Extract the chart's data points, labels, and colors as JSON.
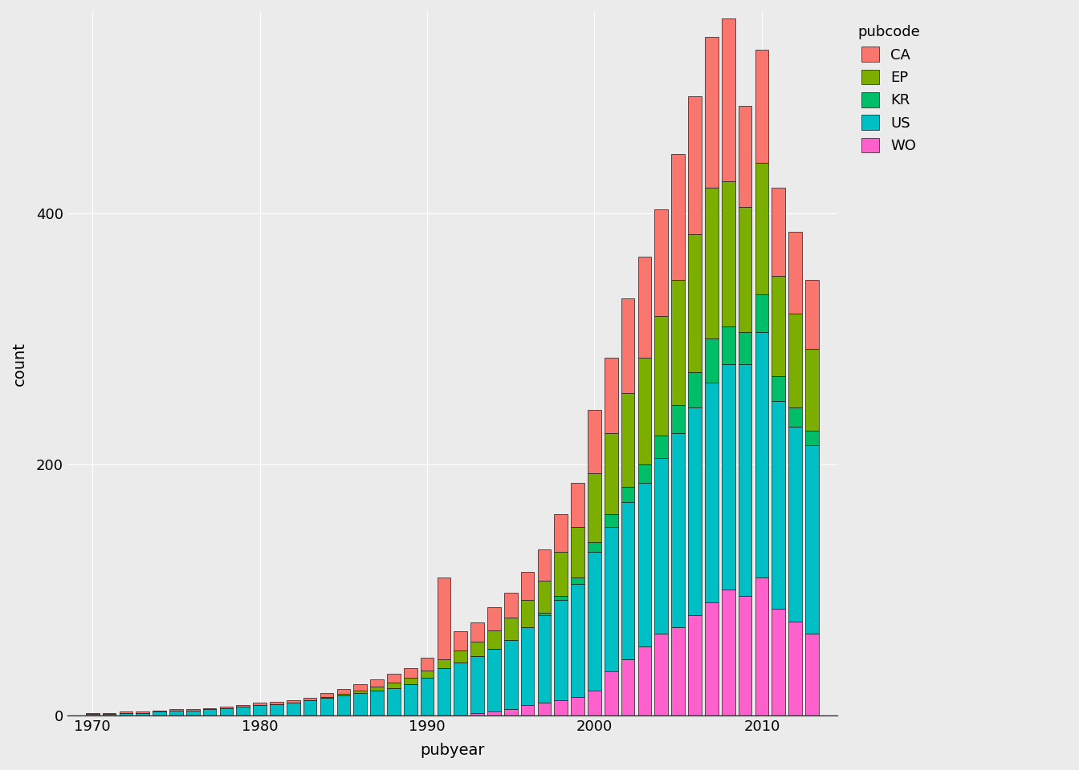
{
  "title": "",
  "xlabel": "pubyear",
  "ylabel": "count",
  "legend_title": "pubcode",
  "background_color": "#EBEBEB",
  "grid_color": "#FFFFFF",
  "bar_edge_color": "#1A1A1A",
  "bar_edge_width": 0.5,
  "categories": [
    "WO",
    "US",
    "KR",
    "EP",
    "CA"
  ],
  "colors": {
    "CA": "#F8766D",
    "EP": "#7CAE00",
    "KR": "#00BE67",
    "US": "#00BFC4",
    "WO": "#FF61CC"
  },
  "years": [
    1970,
    1971,
    1972,
    1973,
    1974,
    1975,
    1976,
    1977,
    1978,
    1979,
    1980,
    1981,
    1982,
    1983,
    1984,
    1985,
    1986,
    1987,
    1988,
    1989,
    1990,
    1991,
    1992,
    1993,
    1994,
    1995,
    1996,
    1997,
    1998,
    1999,
    2000,
    2001,
    2002,
    2003,
    2004,
    2005,
    2006,
    2007,
    2008,
    2009,
    2010,
    2011,
    2012,
    2013
  ],
  "data": {
    "WO": [
      0,
      0,
      0,
      0,
      0,
      0,
      0,
      0,
      0,
      0,
      0,
      0,
      0,
      0,
      0,
      0,
      0,
      0,
      0,
      0,
      0,
      0,
      0,
      2,
      3,
      5,
      8,
      10,
      12,
      15,
      20,
      35,
      45,
      55,
      65,
      70,
      80,
      90,
      100,
      95,
      110,
      85,
      75,
      65
    ],
    "US": [
      1,
      1,
      2,
      2,
      3,
      4,
      4,
      5,
      6,
      7,
      8,
      9,
      10,
      12,
      14,
      16,
      18,
      20,
      22,
      25,
      30,
      38,
      42,
      45,
      50,
      55,
      62,
      70,
      80,
      90,
      110,
      115,
      125,
      130,
      140,
      155,
      165,
      175,
      180,
      185,
      195,
      165,
      155,
      150
    ],
    "KR": [
      0,
      0,
      0,
      0,
      0,
      0,
      0,
      0,
      0,
      0,
      0,
      0,
      0,
      0,
      0,
      0,
      0,
      0,
      0,
      0,
      0,
      0,
      0,
      0,
      0,
      0,
      0,
      2,
      3,
      5,
      8,
      10,
      12,
      15,
      18,
      22,
      28,
      35,
      30,
      25,
      30,
      20,
      15,
      12
    ],
    "EP": [
      0,
      0,
      0,
      0,
      0,
      0,
      0,
      0,
      0,
      0,
      0,
      0,
      0,
      0,
      1,
      1,
      2,
      3,
      4,
      5,
      6,
      7,
      10,
      12,
      15,
      18,
      22,
      25,
      35,
      40,
      55,
      65,
      75,
      85,
      95,
      100,
      110,
      120,
      115,
      100,
      105,
      80,
      75,
      65
    ],
    "CA": [
      1,
      1,
      1,
      1,
      1,
      1,
      1,
      1,
      1,
      1,
      2,
      2,
      2,
      2,
      3,
      4,
      5,
      6,
      7,
      8,
      10,
      65,
      15,
      15,
      18,
      20,
      22,
      25,
      30,
      35,
      50,
      60,
      75,
      80,
      85,
      100,
      110,
      120,
      130,
      80,
      90,
      70,
      65,
      55
    ]
  },
  "ylim": [
    0,
    560
  ],
  "yticks": [
    0,
    200,
    400
  ],
  "xticks": [
    1970,
    1980,
    1990,
    2000,
    2010
  ]
}
